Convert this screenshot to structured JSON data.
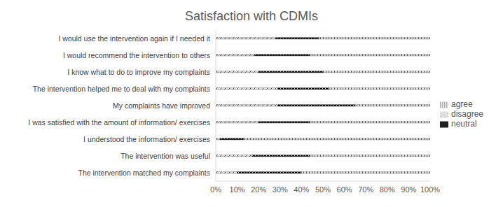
{
  "chart_data": {
    "type": "bar",
    "title": "Satisfaction with CDMIs",
    "orientation": "horizontal",
    "stacked": true,
    "grid": false,
    "legend": "right",
    "categories": [
      "I would use the intervention again if I needed it",
      "I would recommend the intervention to others",
      "I know what to do to improve my complaints",
      "The intervention helped me to deal with my complaints",
      "My complaints have improved",
      "I was satisfied with the amount of information/ exercises",
      "I understood the information/ exercises",
      "The intervention was useful",
      "The intervention matched my complaints"
    ],
    "series": [
      {
        "name": "disagree",
        "color": "#404040",
        "values": [
          28,
          18,
          20,
          29,
          29,
          20,
          2,
          17,
          10
        ]
      },
      {
        "name": "neutral",
        "color": "#000000",
        "values": [
          20,
          26,
          30,
          24,
          36,
          24,
          11,
          27,
          30
        ]
      },
      {
        "name": "agree",
        "color": "#404040",
        "values": [
          52,
          56,
          50,
          47,
          35,
          56,
          87,
          56,
          60
        ]
      }
    ],
    "xlim": [
      0,
      100
    ],
    "xticks": [
      {
        "value": 0,
        "label": "0%"
      },
      {
        "value": 10,
        "label": "10%"
      },
      {
        "value": 20,
        "label": "20%"
      },
      {
        "value": 30,
        "label": "30%"
      },
      {
        "value": 40,
        "label": "40%"
      },
      {
        "value": 50,
        "label": "50%"
      },
      {
        "value": 60,
        "label": "60%"
      },
      {
        "value": 70,
        "label": "70%"
      },
      {
        "value": 80,
        "label": "80%"
      },
      {
        "value": 90,
        "label": "90%"
      },
      {
        "value": 100,
        "label": "100%"
      }
    ]
  }
}
